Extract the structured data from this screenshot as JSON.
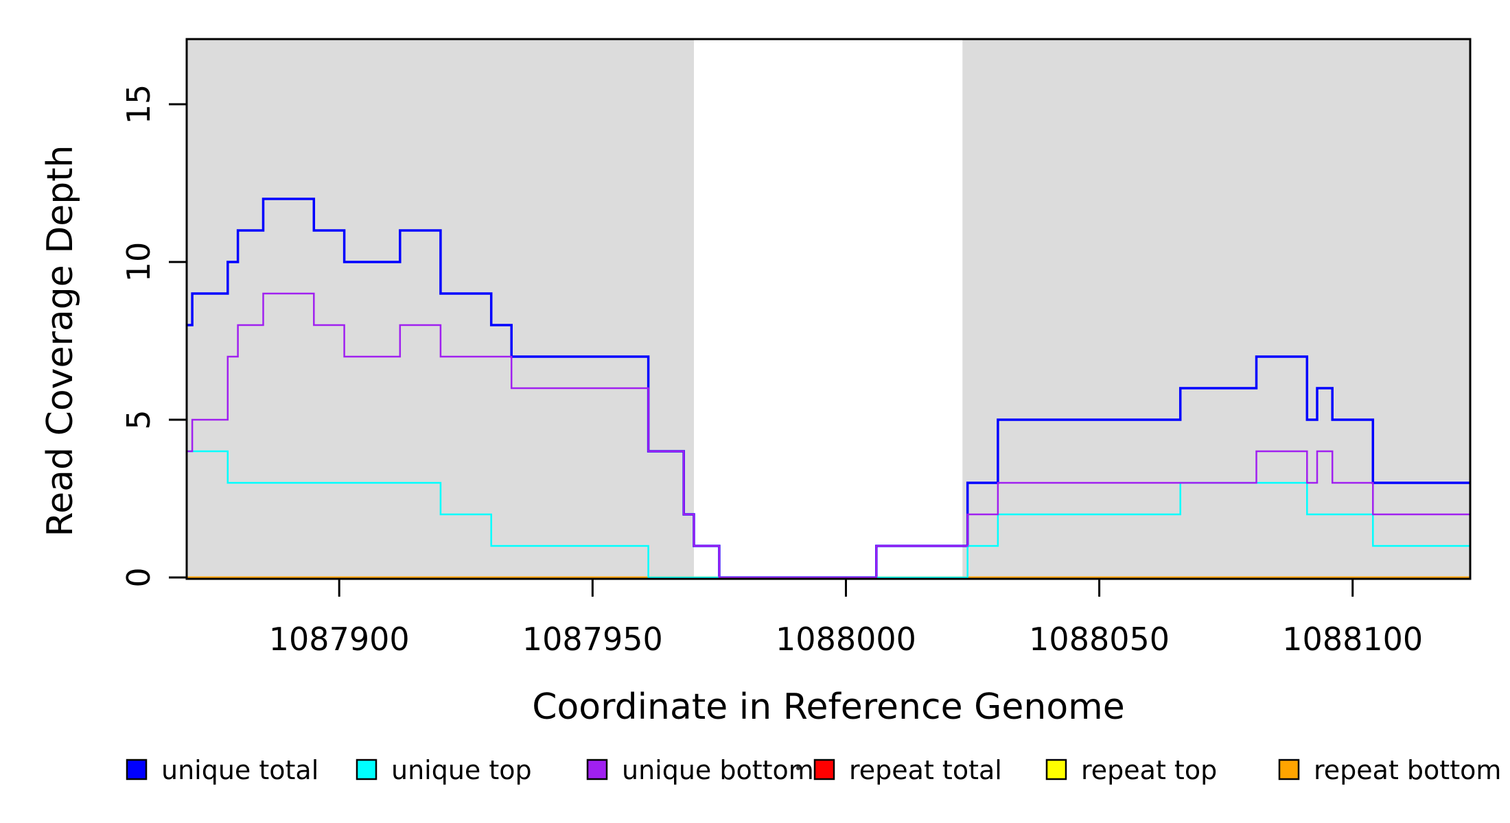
{
  "chart_data": {
    "type": "line",
    "subtype": "step-post",
    "title": "",
    "xlabel": "Coordinate in Reference Genome",
    "ylabel": "Read Coverage Depth",
    "xlim": [
      1087869.9,
      1088123.2
    ],
    "ylim": [
      0,
      17.05
    ],
    "x_ticks": [
      "1087900",
      "1087950",
      "1088000",
      "1088050",
      "1088100"
    ],
    "x_tick_values": [
      1087900,
      1087950,
      1088000,
      1088050,
      1088100
    ],
    "y_ticks": [
      "0",
      "5",
      "10",
      "15"
    ],
    "y_tick_values": [
      0,
      5,
      10,
      15
    ],
    "grid": false,
    "plot_background": "#FFFFFF",
    "shade_color": "#DCDCDC",
    "shaded_regions": [
      {
        "x_start": 1087869.9,
        "x_end": 1087970
      },
      {
        "x_start": 1088023,
        "x_end": 1088123.2
      }
    ],
    "series": [
      {
        "name": "repeat total",
        "color": "#FF0000",
        "line_width": 2.5,
        "breakpoints": [
          [
            1087869.9,
            0
          ]
        ]
      },
      {
        "name": "repeat top",
        "color": "#FFFF00",
        "line_width": 2.5,
        "breakpoints": [
          [
            1087869.9,
            0
          ]
        ]
      },
      {
        "name": "repeat bottom",
        "color": "#FFA500",
        "line_width": 3,
        "breakpoints": [
          [
            1087869.9,
            0
          ]
        ]
      },
      {
        "name": "unique total",
        "color": "#0000FF",
        "line_width": 3.5,
        "breakpoints": [
          [
            1087869.9,
            8
          ],
          [
            1087871,
            9
          ],
          [
            1087878,
            10
          ],
          [
            1087880,
            11
          ],
          [
            1087885,
            12
          ],
          [
            1087895,
            11
          ],
          [
            1087901,
            10
          ],
          [
            1087912,
            11
          ],
          [
            1087920,
            9
          ],
          [
            1087930,
            8
          ],
          [
            1087934,
            7
          ],
          [
            1087961,
            4
          ],
          [
            1087968,
            2
          ],
          [
            1087970,
            1
          ],
          [
            1087975,
            0
          ],
          [
            1088006,
            1
          ],
          [
            1088024,
            3
          ],
          [
            1088030,
            5
          ],
          [
            1088066,
            6
          ],
          [
            1088081,
            7
          ],
          [
            1088091,
            5
          ],
          [
            1088093,
            6
          ],
          [
            1088096,
            5
          ],
          [
            1088104,
            3
          ]
        ]
      },
      {
        "name": "unique top",
        "color": "#00FFFF",
        "line_width": 2.5,
        "breakpoints": [
          [
            1087869.9,
            4
          ],
          [
            1087878,
            3
          ],
          [
            1087920,
            2
          ],
          [
            1087930,
            1
          ],
          [
            1087961,
            0
          ],
          [
            1088024,
            1
          ],
          [
            1088030,
            2
          ],
          [
            1088066,
            3
          ],
          [
            1088091,
            2
          ],
          [
            1088104,
            1
          ]
        ]
      },
      {
        "name": "unique bottom",
        "color": "#A020F0",
        "line_width": 2.5,
        "breakpoints": [
          [
            1087869.9,
            4
          ],
          [
            1087871,
            5
          ],
          [
            1087878,
            7
          ],
          [
            1087880,
            8
          ],
          [
            1087885,
            9
          ],
          [
            1087895,
            8
          ],
          [
            1087901,
            7
          ],
          [
            1087912,
            8
          ],
          [
            1087920,
            7
          ],
          [
            1087934,
            6
          ],
          [
            1087961,
            4
          ],
          [
            1087968,
            2
          ],
          [
            1087970,
            1
          ],
          [
            1087975,
            0
          ],
          [
            1088006,
            1
          ],
          [
            1088024,
            2
          ],
          [
            1088030,
            3
          ],
          [
            1088081,
            4
          ],
          [
            1088091,
            3
          ],
          [
            1088093,
            4
          ],
          [
            1088096,
            3
          ],
          [
            1088104,
            2
          ]
        ]
      }
    ],
    "legend": {
      "position": "bottom",
      "entries": [
        {
          "label": "unique total",
          "color": "#0000FF"
        },
        {
          "label": "unique top",
          "color": "#00FFFF"
        },
        {
          "label": "unique bottom",
          "color": "#A020F0"
        },
        {
          "label": "repeat total",
          "color": "#FF0000"
        },
        {
          "label": "repeat top",
          "color": "#FFFF00"
        },
        {
          "label": "repeat bottom",
          "color": "#FFA500"
        }
      ]
    },
    "annotations": [
      {
        "kind": "stray-dot",
        "color": "#3A3A3A"
      }
    ],
    "axis_color": "#000000"
  }
}
